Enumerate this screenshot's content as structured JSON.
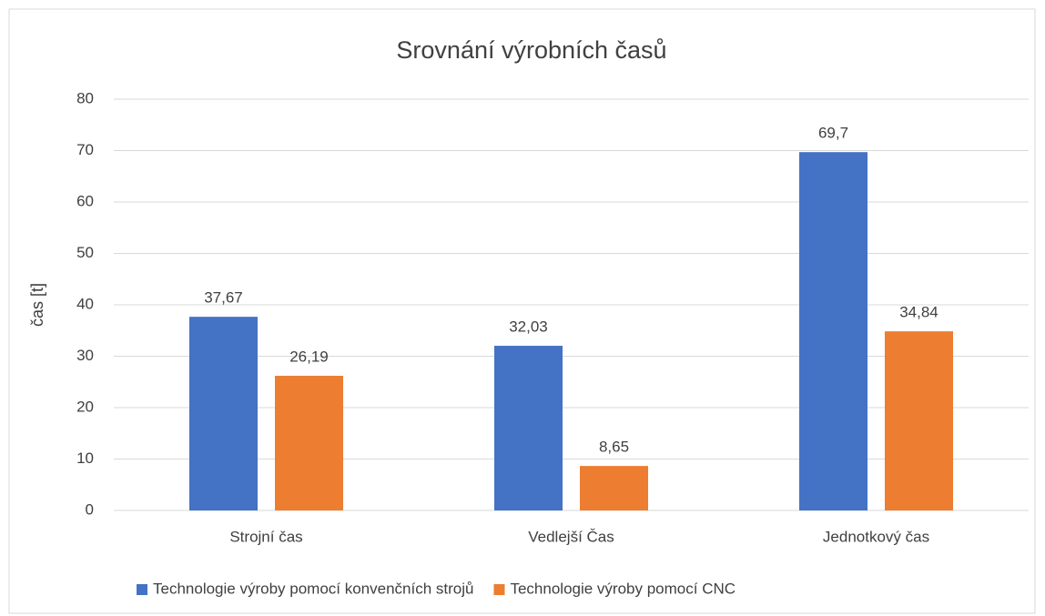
{
  "chart_data": {
    "type": "bar",
    "title": "Srovnání výrobních časů",
    "y_label": "čas [t]",
    "categories": [
      "Strojní čas",
      "Vedlejší Čas",
      "Jednotkový čas"
    ],
    "series": [
      {
        "name": "Technologie výroby pomocí konvenčních strojů",
        "color": "#4472c4",
        "values": [
          37.67,
          32.03,
          69.7
        ],
        "value_labels": [
          "37,67",
          "32,03",
          "69,7"
        ]
      },
      {
        "name": "Technologie výroby pomocí CNC",
        "color": "#ed7d31",
        "values": [
          26.19,
          8.65,
          34.84
        ],
        "value_labels": [
          "26,19",
          "8,65",
          "34,84"
        ]
      }
    ],
    "ylim": [
      0,
      80
    ],
    "yticks": [
      0,
      10,
      20,
      30,
      40,
      50,
      60,
      70,
      80
    ],
    "grid": true,
    "legend": "bottom"
  }
}
